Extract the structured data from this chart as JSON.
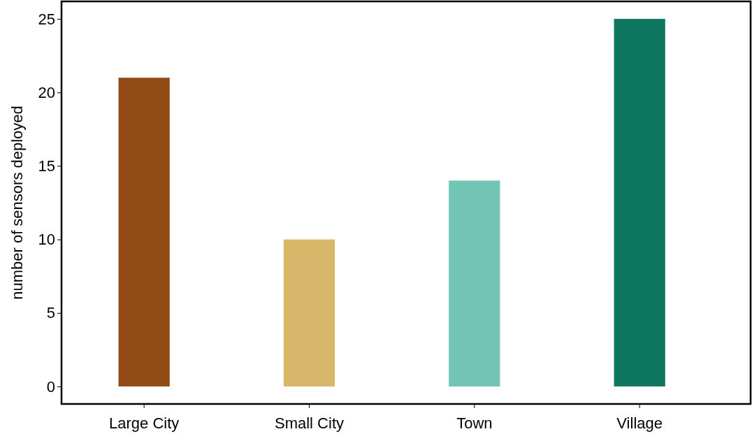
{
  "chart_data": {
    "type": "bar",
    "ylabel": "number of sensors deployed",
    "categories": [
      "Large City",
      "Small City",
      "Town",
      "Village"
    ],
    "values": [
      21,
      10,
      14,
      25
    ],
    "colors": [
      "#934b15",
      "#d8b66a",
      "#72c4b4",
      "#0f765f"
    ],
    "ylim": [
      -1.19,
      26.19
    ],
    "yticks": [
      0,
      5,
      10,
      15,
      20,
      25
    ],
    "grid": false
  }
}
